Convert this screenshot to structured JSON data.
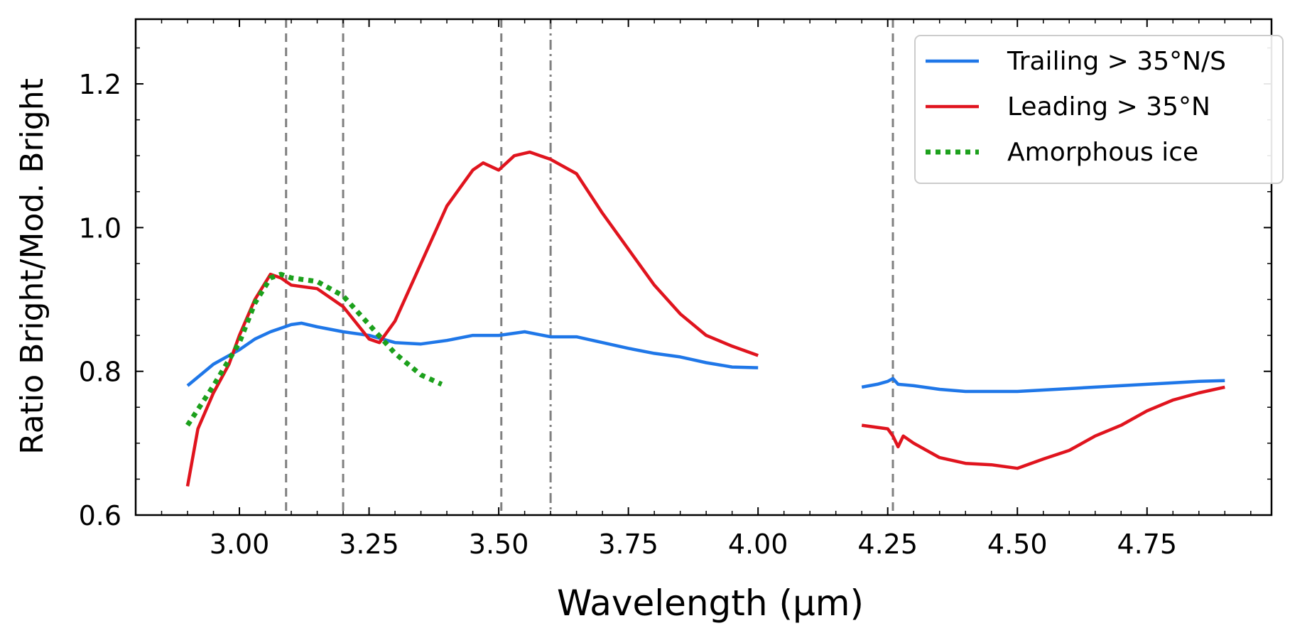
{
  "chart_data": {
    "type": "line",
    "xlabel": "Wavelength (μm)",
    "ylabel": "Ratio Bright/Mod. Bright",
    "xlim": [
      2.8,
      4.99
    ],
    "ylim": [
      0.6,
      1.29
    ],
    "x_ticks": [
      3.0,
      3.25,
      3.5,
      3.75,
      4.0,
      4.25,
      4.5,
      4.75
    ],
    "x_tick_labels": [
      "3.00",
      "3.25",
      "3.50",
      "3.75",
      "4.00",
      "4.25",
      "4.50",
      "4.75"
    ],
    "y_ticks": [
      0.6,
      0.8,
      1.0,
      1.2
    ],
    "y_tick_labels": [
      "0.6",
      "0.8",
      "1.0",
      "1.2"
    ],
    "legend_position": "top-right",
    "vertical_lines": [
      {
        "x": 3.09,
        "style": "dashed",
        "color": "#808080"
      },
      {
        "x": 3.2,
        "style": "dashed",
        "color": "#808080"
      },
      {
        "x": 3.505,
        "style": "dashed",
        "color": "#808080"
      },
      {
        "x": 3.6,
        "style": "dashdot",
        "color": "#808080"
      },
      {
        "x": 4.26,
        "style": "dashed",
        "color": "#808080"
      }
    ],
    "series": [
      {
        "name": "Trailing > 35°N/S",
        "color": "#1f77e8",
        "style": "solid",
        "segments": [
          {
            "x": [
              2.9,
              2.95,
              3.0,
              3.03,
              3.06,
              3.08,
              3.1,
              3.12,
              3.15,
              3.2,
              3.25,
              3.3,
              3.35,
              3.4,
              3.45,
              3.5,
              3.55,
              3.6,
              3.65,
              3.7,
              3.75,
              3.8,
              3.85,
              3.9,
              3.95,
              4.0
            ],
            "y": [
              0.78,
              0.81,
              0.83,
              0.845,
              0.855,
              0.86,
              0.865,
              0.867,
              0.862,
              0.855,
              0.85,
              0.84,
              0.838,
              0.843,
              0.85,
              0.85,
              0.855,
              0.848,
              0.848,
              0.84,
              0.832,
              0.825,
              0.82,
              0.812,
              0.806,
              0.805
            ]
          },
          {
            "x": [
              4.2,
              4.23,
              4.25,
              4.26,
              4.27,
              4.3,
              4.35,
              4.4,
              4.45,
              4.5,
              4.55,
              4.6,
              4.65,
              4.7,
              4.75,
              4.8,
              4.85,
              4.9
            ],
            "y": [
              0.778,
              0.782,
              0.786,
              0.79,
              0.782,
              0.78,
              0.775,
              0.772,
              0.772,
              0.772,
              0.774,
              0.776,
              0.778,
              0.78,
              0.782,
              0.784,
              0.786,
              0.787
            ]
          }
        ]
      },
      {
        "name": "Leading  > 35°N",
        "color": "#e0141e",
        "style": "solid",
        "segments": [
          {
            "x": [
              2.9,
              2.92,
              2.95,
              2.98,
              3.0,
              3.03,
              3.06,
              3.08,
              3.1,
              3.15,
              3.2,
              3.25,
              3.27,
              3.3,
              3.35,
              3.4,
              3.45,
              3.47,
              3.5,
              3.53,
              3.56,
              3.6,
              3.65,
              3.7,
              3.75,
              3.8,
              3.85,
              3.9,
              3.95,
              4.0
            ],
            "y": [
              0.64,
              0.72,
              0.77,
              0.81,
              0.85,
              0.9,
              0.935,
              0.93,
              0.92,
              0.915,
              0.89,
              0.845,
              0.84,
              0.87,
              0.95,
              1.03,
              1.08,
              1.09,
              1.08,
              1.1,
              1.105,
              1.095,
              1.075,
              1.02,
              0.97,
              0.92,
              0.88,
              0.85,
              0.835,
              0.822
            ]
          },
          {
            "x": [
              4.2,
              4.25,
              4.26,
              4.27,
              4.28,
              4.3,
              4.35,
              4.4,
              4.45,
              4.5,
              4.55,
              4.6,
              4.65,
              4.7,
              4.75,
              4.8,
              4.85,
              4.9
            ],
            "y": [
              0.725,
              0.72,
              0.71,
              0.695,
              0.71,
              0.7,
              0.68,
              0.672,
              0.67,
              0.665,
              0.678,
              0.69,
              0.71,
              0.725,
              0.745,
              0.76,
              0.77,
              0.778
            ]
          }
        ]
      },
      {
        "name": "Amorphous ice",
        "color": "#1ca01c",
        "style": "dotted",
        "segments": [
          {
            "x": [
              2.9,
              2.95,
              3.0,
              3.03,
              3.06,
              3.08,
              3.1,
              3.15,
              3.2,
              3.25,
              3.3,
              3.35,
              3.39
            ],
            "y": [
              0.725,
              0.78,
              0.84,
              0.895,
              0.93,
              0.935,
              0.93,
              0.925,
              0.905,
              0.865,
              0.825,
              0.795,
              0.782
            ]
          }
        ]
      }
    ]
  }
}
